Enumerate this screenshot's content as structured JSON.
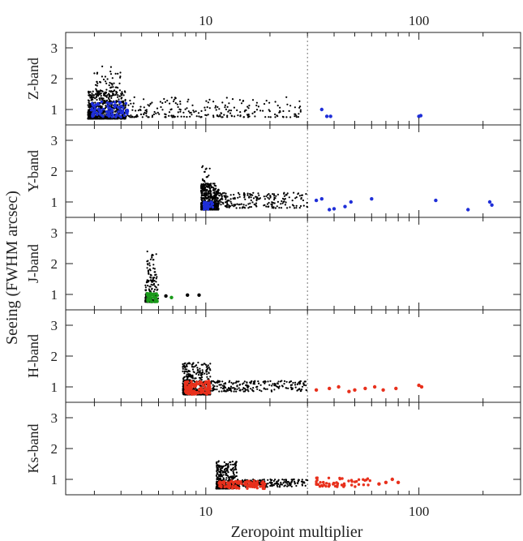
{
  "chart_data": {
    "type": "scatter",
    "xscale": "log",
    "xlim": [
      2.2,
      300
    ],
    "xlabel": "Zeropoint multiplier",
    "ylabel": "Seeing (FWHM arcsec)",
    "x_ticks": [
      "10",
      "100"
    ],
    "y_ticks": [
      "1",
      "2",
      "3"
    ],
    "reference_line_x": 30,
    "grid": false,
    "panels": [
      {
        "label": "Z-band",
        "ylim": [
          0.5,
          3.5
        ],
        "clusters": [
          {
            "color": "#000000",
            "x_range": [
              2.8,
              4.2
            ],
            "y_range": [
              0.7,
              1.6
            ],
            "n": 700
          },
          {
            "color": "#000000",
            "x_range": [
              3.0,
              4.0
            ],
            "y_range": [
              1.5,
              2.4
            ],
            "n": 60
          },
          {
            "color": "#000000",
            "x_range": [
              4.0,
              28
            ],
            "y_range": [
              0.75,
              1.4
            ],
            "n": 260
          },
          {
            "color": "#1f2fd8",
            "x_range": [
              2.9,
              4.3
            ],
            "y_range": [
              0.75,
              1.25
            ],
            "n": 90
          }
        ],
        "points": [
          {
            "color": "#1f2fd8",
            "x": 35,
            "y": 1.0
          },
          {
            "color": "#1f2fd8",
            "x": 37,
            "y": 0.78
          },
          {
            "color": "#1f2fd8",
            "x": 38.5,
            "y": 0.78
          },
          {
            "color": "#1f2fd8",
            "x": 100,
            "y": 0.78
          },
          {
            "color": "#1f2fd8",
            "x": 102,
            "y": 0.8
          }
        ]
      },
      {
        "label": "Y-band",
        "ylim": [
          0.5,
          3.5
        ],
        "clusters": [
          {
            "color": "#000000",
            "x_range": [
              9.5,
              11.5
            ],
            "y_range": [
              0.75,
              1.6
            ],
            "n": 450
          },
          {
            "color": "#000000",
            "x_range": [
              9.6,
              10.5
            ],
            "y_range": [
              1.5,
              2.2
            ],
            "n": 40
          },
          {
            "color": "#000000",
            "x_range": [
              11,
              30
            ],
            "y_range": [
              0.8,
              1.3
            ],
            "n": 220
          },
          {
            "color": "#1f2fd8",
            "x_range": [
              9.8,
              10.8
            ],
            "y_range": [
              0.75,
              1.0
            ],
            "n": 30
          }
        ],
        "points": [
          {
            "color": "#1f2fd8",
            "x": 33,
            "y": 1.05
          },
          {
            "color": "#1f2fd8",
            "x": 35,
            "y": 1.1
          },
          {
            "color": "#1f2fd8",
            "x": 38,
            "y": 0.75
          },
          {
            "color": "#1f2fd8",
            "x": 40,
            "y": 0.78
          },
          {
            "color": "#1f2fd8",
            "x": 45,
            "y": 0.85
          },
          {
            "color": "#1f2fd8",
            "x": 48,
            "y": 1.0
          },
          {
            "color": "#1f2fd8",
            "x": 60,
            "y": 1.1
          },
          {
            "color": "#1f2fd8",
            "x": 120,
            "y": 1.05
          },
          {
            "color": "#1f2fd8",
            "x": 170,
            "y": 0.75
          },
          {
            "color": "#1f2fd8",
            "x": 215,
            "y": 1.0
          },
          {
            "color": "#1f2fd8",
            "x": 220,
            "y": 0.9
          }
        ]
      },
      {
        "label": "J-band",
        "ylim": [
          0.5,
          3.5
        ],
        "clusters": [
          {
            "color": "#000000",
            "x_range": [
              5.2,
              6.0
            ],
            "y_range": [
              0.75,
              1.5
            ],
            "n": 120
          },
          {
            "color": "#000000",
            "x_range": [
              5.3,
              5.9
            ],
            "y_range": [
              1.4,
              2.4
            ],
            "n": 50
          },
          {
            "color": "#1a9a1a",
            "x_range": [
              5.3,
              6.0
            ],
            "y_range": [
              0.75,
              1.05
            ],
            "n": 45
          }
        ],
        "points": [
          {
            "color": "#000000",
            "x": 6.5,
            "y": 0.95
          },
          {
            "color": "#1a9a1a",
            "x": 6.9,
            "y": 0.9
          },
          {
            "color": "#000000",
            "x": 8.2,
            "y": 0.98
          },
          {
            "color": "#000000",
            "x": 9.3,
            "y": 0.98
          }
        ]
      },
      {
        "label": "H-band",
        "ylim": [
          0.5,
          3.5
        ],
        "clusters": [
          {
            "color": "#000000",
            "x_range": [
              7.8,
              10.5
            ],
            "y_range": [
              0.75,
              1.8
            ],
            "n": 450
          },
          {
            "color": "#000000",
            "x_range": [
              10.5,
              30
            ],
            "y_range": [
              0.85,
              1.2
            ],
            "n": 220
          },
          {
            "color": "#e8301c",
            "x_range": [
              8.0,
              10.5
            ],
            "y_range": [
              0.75,
              1.2
            ],
            "n": 120
          }
        ],
        "points": [
          {
            "color": "#e8301c",
            "x": 33,
            "y": 0.9
          },
          {
            "color": "#e8301c",
            "x": 38,
            "y": 0.95
          },
          {
            "color": "#e8301c",
            "x": 42,
            "y": 1.0
          },
          {
            "color": "#e8301c",
            "x": 47,
            "y": 0.85
          },
          {
            "color": "#e8301c",
            "x": 50,
            "y": 0.9
          },
          {
            "color": "#e8301c",
            "x": 56,
            "y": 0.95
          },
          {
            "color": "#e8301c",
            "x": 62,
            "y": 1.0
          },
          {
            "color": "#e8301c",
            "x": 68,
            "y": 0.9
          },
          {
            "color": "#e8301c",
            "x": 78,
            "y": 0.95
          },
          {
            "color": "#e8301c",
            "x": 100,
            "y": 1.05
          },
          {
            "color": "#e8301c",
            "x": 103,
            "y": 1.0
          }
        ]
      },
      {
        "label": "Ks-band",
        "ylim": [
          0.5,
          3.5
        ],
        "clusters": [
          {
            "color": "#000000",
            "x_range": [
              11.2,
              14.0
            ],
            "y_range": [
              0.7,
              1.6
            ],
            "n": 420
          },
          {
            "color": "#000000",
            "x_range": [
              14,
              30
            ],
            "y_range": [
              0.75,
              1.0
            ],
            "n": 200
          },
          {
            "color": "#e8301c",
            "x_range": [
              11.5,
              19
            ],
            "y_range": [
              0.7,
              0.95
            ],
            "n": 110
          },
          {
            "color": "#e8301c",
            "x_range": [
              33,
              60
            ],
            "y_range": [
              0.75,
              1.05
            ],
            "n": 55
          }
        ],
        "points": [
          {
            "color": "#e8301c",
            "x": 65,
            "y": 0.85
          },
          {
            "color": "#e8301c",
            "x": 70,
            "y": 0.9
          },
          {
            "color": "#e8301c",
            "x": 75,
            "y": 1.0
          },
          {
            "color": "#e8301c",
            "x": 80,
            "y": 0.9
          }
        ]
      }
    ]
  }
}
